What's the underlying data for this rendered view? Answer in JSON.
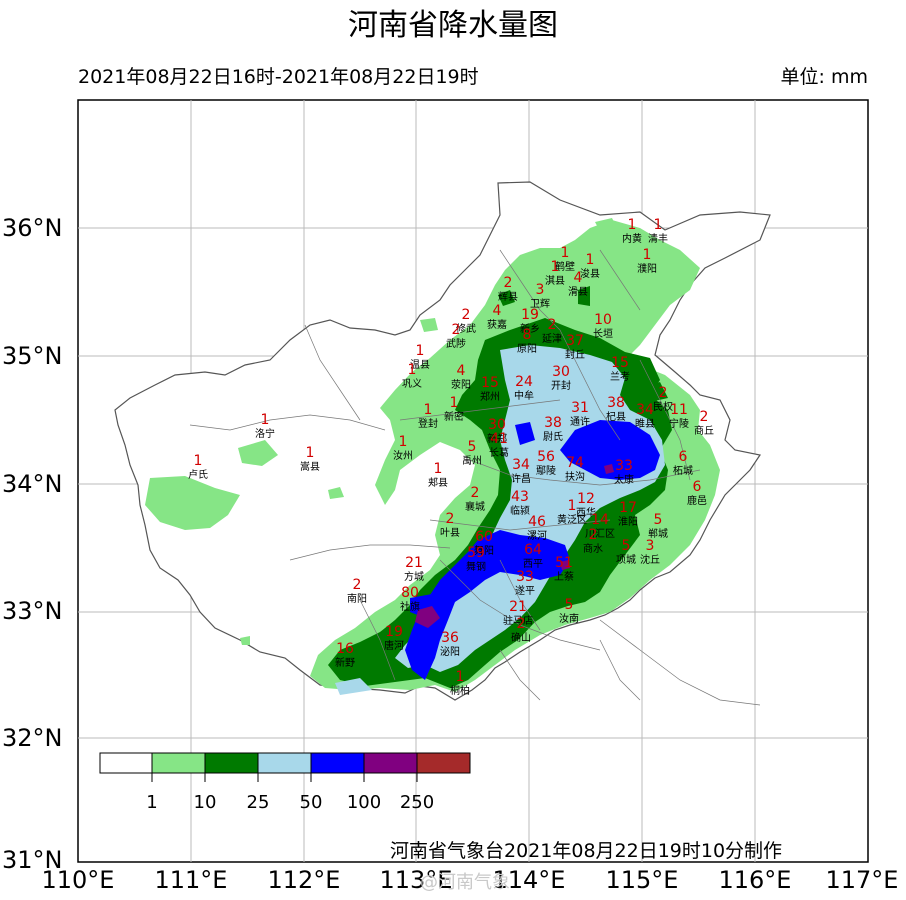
{
  "header": {
    "title": "河南省降水量图",
    "period": "2021年08月22日16时-2021年08月22日19时",
    "unit": "单位: mm"
  },
  "footer": {
    "credit": "河南省气象台2021年08月22日19时10分制作",
    "watermark": "@河南气象"
  },
  "axes": {
    "longitudes": [
      "110°E",
      "111°E",
      "112°E",
      "113°E",
      "114°E",
      "115°E",
      "116°E",
      "117°E"
    ],
    "latitudes": [
      "36°N",
      "35°N",
      "34°N",
      "33°N",
      "32°N",
      "31°N"
    ]
  },
  "legend": {
    "colors": [
      "#ffffff",
      "#86e586",
      "#007a00",
      "#a8d8ea",
      "#0000ff",
      "#800080",
      "#a52a2a"
    ],
    "ticks": [
      "1",
      "10",
      "25",
      "50",
      "100",
      "250"
    ]
  },
  "stations": [
    {
      "name": "内黄",
      "value": "1"
    },
    {
      "name": "清丰",
      "value": "1"
    },
    {
      "name": "鹤壁",
      "value": "1"
    },
    {
      "name": "淇县",
      "value": "1"
    },
    {
      "name": "浚县",
      "value": "1"
    },
    {
      "name": "濮阳",
      "value": "1"
    },
    {
      "name": "辉县",
      "value": "2"
    },
    {
      "name": "卫辉",
      "value": "3"
    },
    {
      "name": "滑县",
      "value": "4"
    },
    {
      "name": "获嘉",
      "value": "4"
    },
    {
      "name": "修武",
      "value": "2"
    },
    {
      "name": "新乡",
      "value": "19"
    },
    {
      "name": "延津",
      "value": "2"
    },
    {
      "name": "长垣",
      "value": "10"
    },
    {
      "name": "封丘",
      "value": "37"
    },
    {
      "name": "武陟",
      "value": "2"
    },
    {
      "name": "原阳",
      "value": "8"
    },
    {
      "name": "温县",
      "value": "1"
    },
    {
      "name": "巩义",
      "value": "1"
    },
    {
      "name": "荥阳",
      "value": "4"
    },
    {
      "name": "郑州",
      "value": "15"
    },
    {
      "name": "中牟",
      "value": "24"
    },
    {
      "name": "开封",
      "value": "30"
    },
    {
      "name": "兰考",
      "value": "15"
    },
    {
      "name": "民权",
      "value": "2"
    },
    {
      "name": "宁陵",
      "value": "11"
    },
    {
      "name": "商丘",
      "value": "2"
    },
    {
      "name": "睢县",
      "value": "34"
    },
    {
      "name": "杞县",
      "value": "38"
    },
    {
      "name": "通许",
      "value": "31"
    },
    {
      "name": "尉氏",
      "value": "38"
    },
    {
      "name": "新郑",
      "value": "30"
    },
    {
      "name": "登封",
      "value": "1"
    },
    {
      "name": "新密",
      "value": "1"
    },
    {
      "name": "长葛",
      "value": "41"
    },
    {
      "name": "禹州",
      "value": "5"
    },
    {
      "name": "汝州",
      "value": "1"
    },
    {
      "name": "许昌",
      "value": "34"
    },
    {
      "name": "鄢陵",
      "value": "56"
    },
    {
      "name": "扶沟",
      "value": "74"
    },
    {
      "name": "太康",
      "value": "33"
    },
    {
      "name": "柘城",
      "value": "6"
    },
    {
      "name": "鹿邑",
      "value": "6"
    },
    {
      "name": "郏县",
      "value": "1"
    },
    {
      "name": "襄城",
      "value": "2"
    },
    {
      "name": "临颍",
      "value": "43"
    },
    {
      "name": "西华",
      "value": "12"
    },
    {
      "name": "黄泛区",
      "value": "1"
    },
    {
      "name": "淮阳",
      "value": "17"
    },
    {
      "name": "郸城",
      "value": "5"
    },
    {
      "name": "川汇区",
      "value": "14"
    },
    {
      "name": "商水",
      "value": "2"
    },
    {
      "name": "项城",
      "value": "5"
    },
    {
      "name": "沈丘",
      "value": "3"
    },
    {
      "name": "漯河",
      "value": "46"
    },
    {
      "name": "叶县",
      "value": "2"
    },
    {
      "name": "舞阳",
      "value": "60"
    },
    {
      "name": "舞钢",
      "value": "59"
    },
    {
      "name": "西平",
      "value": "64"
    },
    {
      "name": "上蔡",
      "value": "51"
    },
    {
      "name": "遂平",
      "value": "33"
    },
    {
      "name": "汝南",
      "value": "5"
    },
    {
      "name": "驻马店",
      "value": "21"
    },
    {
      "name": "确山",
      "value": "2"
    },
    {
      "name": "方城",
      "value": "21"
    },
    {
      "name": "南阳",
      "value": "2"
    },
    {
      "name": "社旗",
      "value": "80"
    },
    {
      "name": "唐河",
      "value": "19"
    },
    {
      "name": "泌阳",
      "value": "36"
    },
    {
      "name": "新野",
      "value": "16"
    },
    {
      "name": "桐柏",
      "value": "1"
    },
    {
      "name": "洛宁",
      "value": "1"
    },
    {
      "name": "嵩县",
      "value": "1"
    },
    {
      "name": "卢氏",
      "value": "1"
    }
  ]
}
